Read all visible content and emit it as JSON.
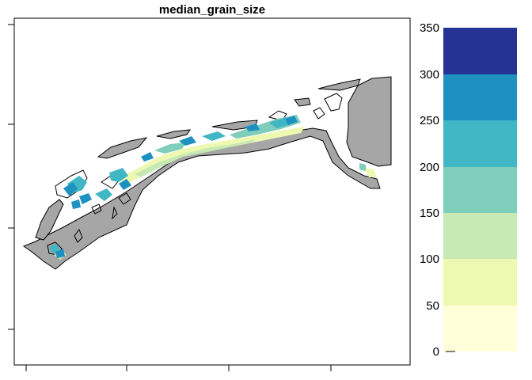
{
  "title": "median_grain_size",
  "colors": {
    "land": "#a6a6a6",
    "outline": "#000000",
    "frame": "#000000"
  },
  "legend": {
    "placement": "right",
    "ticks": [
      "0",
      "50",
      "100",
      "150",
      "200",
      "250",
      "300",
      "350"
    ],
    "bins": [
      {
        "from": 0,
        "to": 50,
        "color": "#ffffd9"
      },
      {
        "from": 50,
        "to": 100,
        "color": "#edf8b1"
      },
      {
        "from": 100,
        "to": 150,
        "color": "#c7e9b4"
      },
      {
        "from": 150,
        "to": 200,
        "color": "#7fcdbb"
      },
      {
        "from": 200,
        "to": 250,
        "color": "#41b6c4"
      },
      {
        "from": 250,
        "to": 300,
        "color": "#1d91c0"
      },
      {
        "from": 300,
        "to": 350,
        "color": "#253494"
      }
    ],
    "range": [
      0,
      350
    ]
  },
  "axes": {
    "x_ticks": 4,
    "y_ticks": 4
  }
}
